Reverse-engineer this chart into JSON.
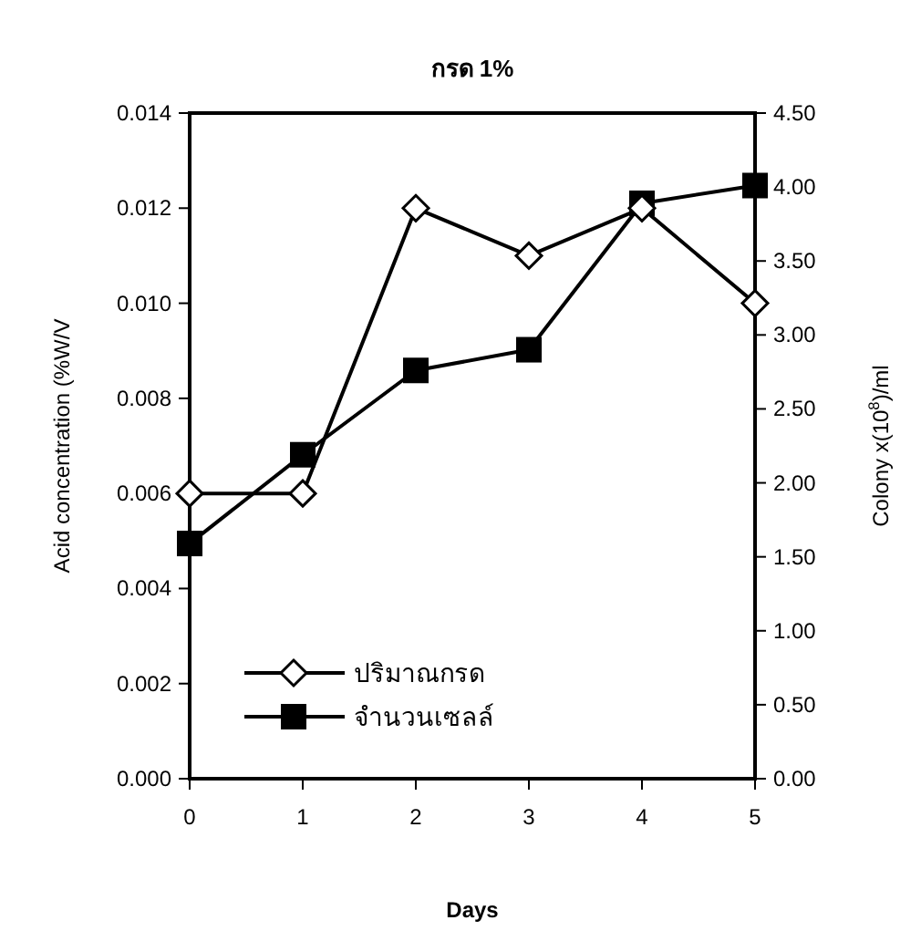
{
  "chart_data": {
    "type": "line",
    "title": "กรด 1%",
    "xlabel": "Days",
    "ylabel": "Acid concentration (%W/V",
    "y2label": "Colony x(10$^{8}$)/ml",
    "x": [
      0,
      1,
      2,
      3,
      4,
      5
    ],
    "xlim": [
      0,
      5
    ],
    "xticks": [
      0,
      1,
      2,
      3,
      4,
      5
    ],
    "ylim": [
      0,
      0.014
    ],
    "yticks": [
      {
        "value": 0,
        "label": "0.000"
      },
      {
        "value": 0.002,
        "label": "0.002"
      },
      {
        "value": 0.004,
        "label": "0.004"
      },
      {
        "value": 0.006,
        "label": "0.006"
      },
      {
        "value": 0.008,
        "label": "0.008"
      },
      {
        "value": 0.01,
        "label": "0.010"
      },
      {
        "value": 0.012,
        "label": "0.012"
      },
      {
        "value": 0.014,
        "label": "0.014"
      }
    ],
    "y2lim": [
      0,
      4.5
    ],
    "y2ticks": [
      {
        "value": 0,
        "label": "0.00"
      },
      {
        "value": 0.5,
        "label": "0.50"
      },
      {
        "value": 1,
        "label": "1.00"
      },
      {
        "value": 1.5,
        "label": "1.50"
      },
      {
        "value": 2,
        "label": "2.00"
      },
      {
        "value": 2.5,
        "label": "2.50"
      },
      {
        "value": 3,
        "label": "3.00"
      },
      {
        "value": 3.5,
        "label": "3.50"
      },
      {
        "value": 4,
        "label": "4.00"
      },
      {
        "value": 4.5,
        "label": "4.50"
      }
    ],
    "legend": "bottom left",
    "series": [
      {
        "name": "ปริมาณกรด",
        "color": "#000000",
        "marker": "diamond",
        "values": [
          0.006,
          0.006,
          0.012,
          0.011,
          0.012,
          0.01
        ]
      },
      {
        "name": "จำนวนเซลล์",
        "color": "#000000",
        "marker": "square",
        "axis": "y2",
        "values": [
          1.59,
          2.19,
          2.76,
          2.9,
          3.89,
          4.01
        ]
      }
    ]
  }
}
